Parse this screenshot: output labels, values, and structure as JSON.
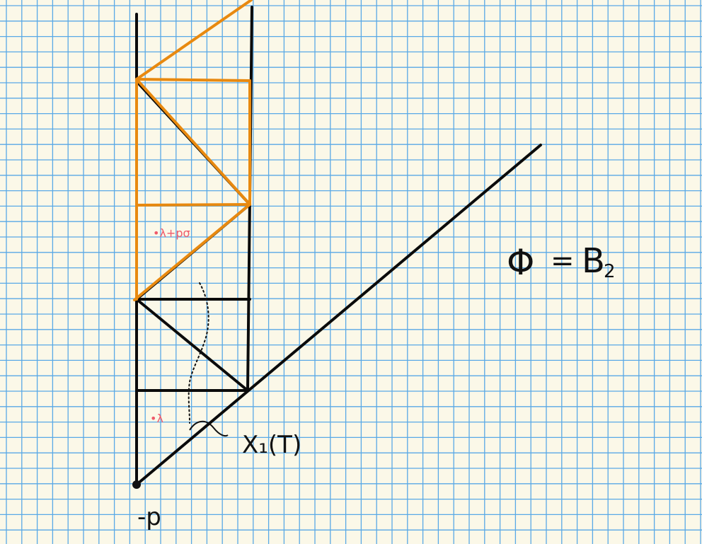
{
  "labels": {
    "vertex": "-p",
    "weyl": "X₁(T)",
    "lambda": "•λ",
    "lambda_plus": "•λ+pσ",
    "phi_lhs": "Φ",
    "phi_eq": "=",
    "phi_rhs": "B",
    "phi_sub": "2"
  },
  "colors": {
    "background": "#fbf8e8",
    "grid": "#59a9e6",
    "ink": "#0b0b0b",
    "orange": "#e8890f",
    "pink": "#ef5a6a"
  }
}
